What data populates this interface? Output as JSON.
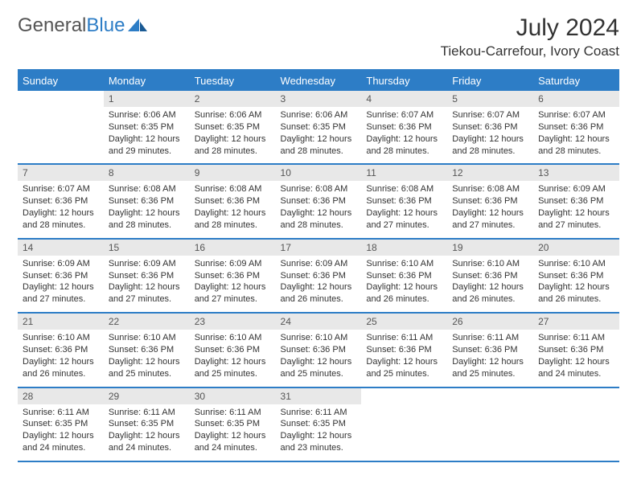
{
  "brand": {
    "name_part1": "General",
    "name_part2": "Blue"
  },
  "title": "July 2024",
  "location": "Tiekou-Carrefour, Ivory Coast",
  "colors": {
    "header_bg": "#2d7dc6",
    "daynum_bg": "#e8e8e8",
    "border": "#2d7dc6",
    "text": "#333333"
  },
  "weekdays": [
    "Sunday",
    "Monday",
    "Tuesday",
    "Wednesday",
    "Thursday",
    "Friday",
    "Saturday"
  ],
  "weeks": [
    [
      {
        "empty": true
      },
      {
        "day": "1",
        "sr": "6:06 AM",
        "ss": "6:35 PM",
        "dl": "12 hours and 29 minutes."
      },
      {
        "day": "2",
        "sr": "6:06 AM",
        "ss": "6:35 PM",
        "dl": "12 hours and 28 minutes."
      },
      {
        "day": "3",
        "sr": "6:06 AM",
        "ss": "6:35 PM",
        "dl": "12 hours and 28 minutes."
      },
      {
        "day": "4",
        "sr": "6:07 AM",
        "ss": "6:36 PM",
        "dl": "12 hours and 28 minutes."
      },
      {
        "day": "5",
        "sr": "6:07 AM",
        "ss": "6:36 PM",
        "dl": "12 hours and 28 minutes."
      },
      {
        "day": "6",
        "sr": "6:07 AM",
        "ss": "6:36 PM",
        "dl": "12 hours and 28 minutes."
      }
    ],
    [
      {
        "day": "7",
        "sr": "6:07 AM",
        "ss": "6:36 PM",
        "dl": "12 hours and 28 minutes."
      },
      {
        "day": "8",
        "sr": "6:08 AM",
        "ss": "6:36 PM",
        "dl": "12 hours and 28 minutes."
      },
      {
        "day": "9",
        "sr": "6:08 AM",
        "ss": "6:36 PM",
        "dl": "12 hours and 28 minutes."
      },
      {
        "day": "10",
        "sr": "6:08 AM",
        "ss": "6:36 PM",
        "dl": "12 hours and 28 minutes."
      },
      {
        "day": "11",
        "sr": "6:08 AM",
        "ss": "6:36 PM",
        "dl": "12 hours and 27 minutes."
      },
      {
        "day": "12",
        "sr": "6:08 AM",
        "ss": "6:36 PM",
        "dl": "12 hours and 27 minutes."
      },
      {
        "day": "13",
        "sr": "6:09 AM",
        "ss": "6:36 PM",
        "dl": "12 hours and 27 minutes."
      }
    ],
    [
      {
        "day": "14",
        "sr": "6:09 AM",
        "ss": "6:36 PM",
        "dl": "12 hours and 27 minutes."
      },
      {
        "day": "15",
        "sr": "6:09 AM",
        "ss": "6:36 PM",
        "dl": "12 hours and 27 minutes."
      },
      {
        "day": "16",
        "sr": "6:09 AM",
        "ss": "6:36 PM",
        "dl": "12 hours and 27 minutes."
      },
      {
        "day": "17",
        "sr": "6:09 AM",
        "ss": "6:36 PM",
        "dl": "12 hours and 26 minutes."
      },
      {
        "day": "18",
        "sr": "6:10 AM",
        "ss": "6:36 PM",
        "dl": "12 hours and 26 minutes."
      },
      {
        "day": "19",
        "sr": "6:10 AM",
        "ss": "6:36 PM",
        "dl": "12 hours and 26 minutes."
      },
      {
        "day": "20",
        "sr": "6:10 AM",
        "ss": "6:36 PM",
        "dl": "12 hours and 26 minutes."
      }
    ],
    [
      {
        "day": "21",
        "sr": "6:10 AM",
        "ss": "6:36 PM",
        "dl": "12 hours and 26 minutes."
      },
      {
        "day": "22",
        "sr": "6:10 AM",
        "ss": "6:36 PM",
        "dl": "12 hours and 25 minutes."
      },
      {
        "day": "23",
        "sr": "6:10 AM",
        "ss": "6:36 PM",
        "dl": "12 hours and 25 minutes."
      },
      {
        "day": "24",
        "sr": "6:10 AM",
        "ss": "6:36 PM",
        "dl": "12 hours and 25 minutes."
      },
      {
        "day": "25",
        "sr": "6:11 AM",
        "ss": "6:36 PM",
        "dl": "12 hours and 25 minutes."
      },
      {
        "day": "26",
        "sr": "6:11 AM",
        "ss": "6:36 PM",
        "dl": "12 hours and 25 minutes."
      },
      {
        "day": "27",
        "sr": "6:11 AM",
        "ss": "6:36 PM",
        "dl": "12 hours and 24 minutes."
      }
    ],
    [
      {
        "day": "28",
        "sr": "6:11 AM",
        "ss": "6:35 PM",
        "dl": "12 hours and 24 minutes."
      },
      {
        "day": "29",
        "sr": "6:11 AM",
        "ss": "6:35 PM",
        "dl": "12 hours and 24 minutes."
      },
      {
        "day": "30",
        "sr": "6:11 AM",
        "ss": "6:35 PM",
        "dl": "12 hours and 24 minutes."
      },
      {
        "day": "31",
        "sr": "6:11 AM",
        "ss": "6:35 PM",
        "dl": "12 hours and 23 minutes."
      },
      {
        "empty": true
      },
      {
        "empty": true
      },
      {
        "empty": true
      }
    ]
  ],
  "labels": {
    "sunrise": "Sunrise:",
    "sunset": "Sunset:",
    "daylight": "Daylight:"
  }
}
